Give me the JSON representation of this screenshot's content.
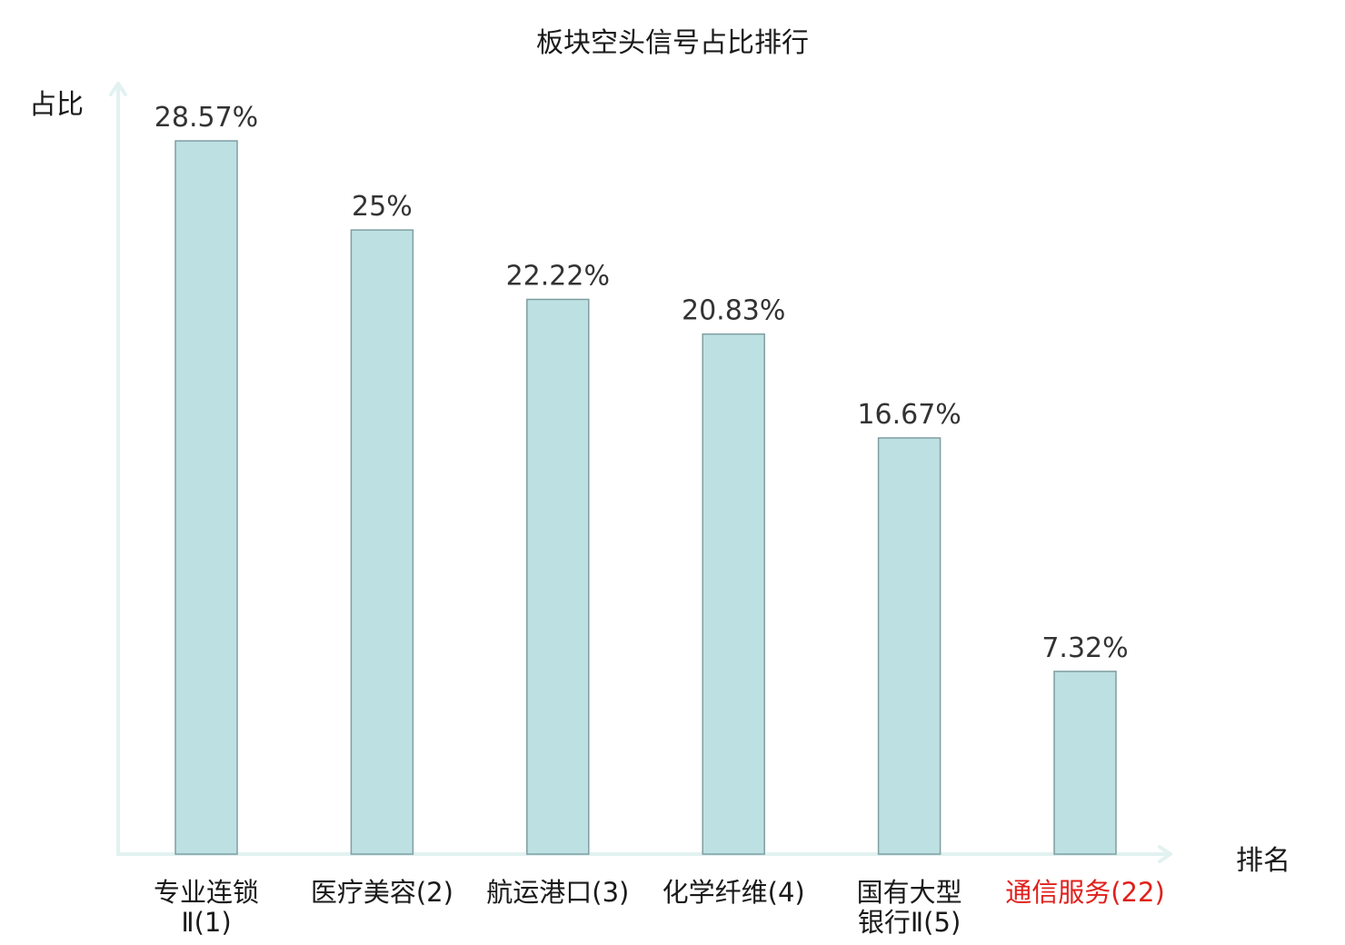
{
  "chart_data": {
    "type": "bar",
    "title": "板块空头信号占比排行",
    "ylabel": "占比",
    "xlabel": "排名",
    "ylim": [
      0,
      30.5
    ],
    "grid": false,
    "legend": "none",
    "categories": [
      {
        "line1": "专业连锁",
        "line2": "Ⅱ(1)",
        "highlight": false
      },
      {
        "line1": "医疗美容(2)",
        "line2": "",
        "highlight": false
      },
      {
        "line1": "航运港口(3)",
        "line2": "",
        "highlight": false
      },
      {
        "line1": "化学纤维(4)",
        "line2": "",
        "highlight": false
      },
      {
        "line1": "国有大型",
        "line2": "银行Ⅱ(5)",
        "highlight": false
      },
      {
        "line1": "通信服务(22)",
        "line2": "",
        "highlight": true
      }
    ],
    "values": [
      28.57,
      25,
      22.22,
      20.83,
      16.67,
      7.32
    ],
    "value_labels": [
      "28.57%",
      "25%",
      "22.22%",
      "20.83%",
      "16.67%",
      "7.32%"
    ]
  },
  "colors": {
    "bar_fill": "#bde0e3",
    "bar_stroke": "#7f9ea2",
    "axis": "#e2f2f0",
    "highlight_text": "#e0201c",
    "text": "#1a1a1a",
    "value_text": "#333333"
  }
}
